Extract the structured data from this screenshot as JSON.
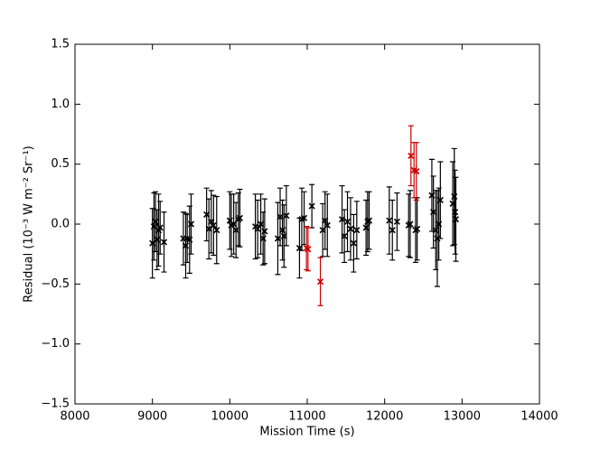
{
  "chart_data": {
    "type": "errorbar-scatter",
    "xlabel": "Mission Time (s)",
    "ylabel": "Residual (10⁻³ W m⁻² Sr⁻¹)",
    "xlim": [
      8000,
      14000
    ],
    "xticks": [
      8000,
      9000,
      10000,
      11000,
      12000,
      13000,
      14000
    ],
    "ylim": [
      -1.5,
      1.5
    ],
    "yticks": [
      {
        "value": -1.5,
        "label": "−1.5"
      },
      {
        "value": -1.0,
        "label": "−1.0"
      },
      {
        "value": -0.5,
        "label": "−0.5"
      },
      {
        "value": 0,
        "label": "0.0"
      },
      {
        "value": 0.5,
        "label": "0.5"
      },
      {
        "value": 1.0,
        "label": "1.0"
      },
      {
        "value": 1.5,
        "label": "1.5"
      }
    ],
    "series": [
      {
        "color": "#000000",
        "x": [
          9000,
          9020,
          9040,
          9060,
          9080,
          9100,
          9150,
          9400,
          9430,
          9450,
          9480,
          9500,
          9700,
          9730,
          9760,
          9790,
          9830,
          10000,
          10020,
          10050,
          10080,
          10110,
          10130,
          10330,
          10360,
          10400,
          10430,
          10450,
          10620,
          10650,
          10680,
          10700,
          10730,
          10900,
          10930,
          10960,
          11060,
          11200,
          11230,
          11260,
          11450,
          11480,
          11520,
          11560,
          11600,
          11640,
          11760,
          11780,
          11800,
          12060,
          12100,
          12160,
          12310,
          12330,
          12400,
          12420,
          12610,
          12630,
          12660,
          12680,
          12700,
          12720,
          12880,
          12900,
          12910,
          12920
        ],
        "values": [
          -0.16,
          -0.02,
          0.02,
          -0.13,
          -0.05,
          -0.03,
          -0.15,
          -0.12,
          -0.18,
          -0.12,
          -0.13,
          0.0,
          0.08,
          -0.04,
          0.02,
          -0.01,
          -0.05,
          0.03,
          -0.01,
          0.0,
          -0.05,
          0.04,
          0.05,
          -0.02,
          -0.04,
          0.0,
          -0.12,
          -0.06,
          -0.12,
          0.06,
          -0.05,
          -0.1,
          0.07,
          -0.2,
          0.04,
          0.05,
          0.15,
          -0.05,
          0.03,
          -0.01,
          0.04,
          -0.1,
          0.02,
          -0.04,
          -0.16,
          -0.05,
          -0.03,
          0.02,
          0.03,
          0.03,
          -0.05,
          0.02,
          -0.01,
          0.0,
          -0.05,
          -0.04,
          0.24,
          0.1,
          -0.05,
          -0.12,
          0.0,
          0.2,
          0.17,
          0.23,
          0.1,
          0.04
        ],
        "errors": [
          0.29,
          0.28,
          0.25,
          0.25,
          0.3,
          0.22,
          0.25,
          0.22,
          0.27,
          0.2,
          0.28,
          0.25,
          0.22,
          0.25,
          0.26,
          0.25,
          0.28,
          0.24,
          0.26,
          0.25,
          0.23,
          0.22,
          0.24,
          0.27,
          0.24,
          0.25,
          0.22,
          0.27,
          0.3,
          0.24,
          0.25,
          0.26,
          0.25,
          0.25,
          0.26,
          0.22,
          0.18,
          0.22,
          0.24,
          0.26,
          0.28,
          0.22,
          0.25,
          0.26,
          0.24,
          0.24,
          0.23,
          0.25,
          0.24,
          0.28,
          0.25,
          0.24,
          0.26,
          0.28,
          0.27,
          0.26,
          0.3,
          0.3,
          0.33,
          0.4,
          0.3,
          0.32,
          0.35,
          0.4,
          0.35,
          0.35
        ]
      },
      {
        "color": "#cc0000",
        "x": [
          10990,
          11010,
          11170,
          12340,
          12380,
          12410
        ],
        "values": [
          -0.2,
          -0.21,
          -0.48,
          0.57,
          0.45,
          0.44
        ],
        "errors": [
          0.18,
          0.18,
          0.2,
          0.25,
          0.23,
          0.24
        ]
      }
    ]
  }
}
